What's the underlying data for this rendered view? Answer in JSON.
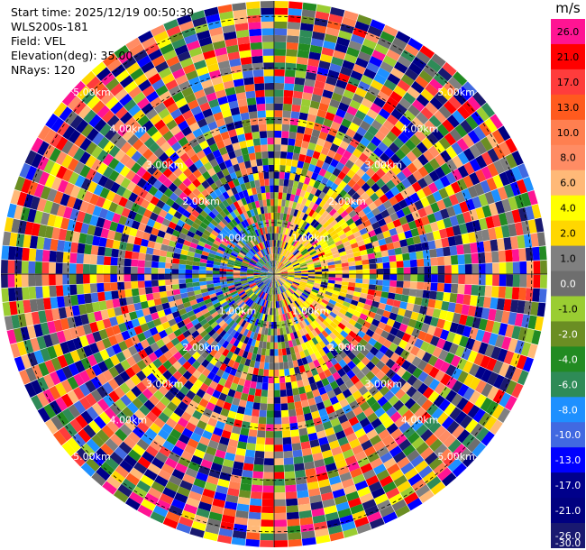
{
  "header": {
    "start_time": "Start time: 2025/12/19 00:50:39",
    "instrument": "WLS200s-181",
    "field": "Field: VEL",
    "elevation": "Elevation(deg): 35.00",
    "nrays": "NRays: 120"
  },
  "chart_data": {
    "type": "ppi",
    "field": "VEL",
    "unit": "m/s",
    "nrays": 120,
    "range_rings_km": [
      1.0,
      2.0,
      3.0,
      4.0,
      5.0
    ],
    "range_ring_labels": [
      "1.00km",
      "2.00km",
      "3.00km",
      "4.00km",
      "5.00km"
    ],
    "max_range_km": 5.3,
    "colorbar": {
      "ticks": [
        "26.0",
        "21.0",
        "17.0",
        "13.0",
        "10.0",
        "8.0",
        "6.0",
        "4.0",
        "2.0",
        "1.0",
        "0.0",
        "-1.0",
        "-2.0",
        "-4.0",
        "-6.0",
        "-8.0",
        "-10.0",
        "-13.0",
        "-17.0",
        "-21.0",
        "-26.0",
        "-30.0"
      ],
      "colors": [
        "#ff1493",
        "#ff0000",
        "#ff3c3c",
        "#ff5a1e",
        "#ff7f50",
        "#ff8c64",
        "#ffb978",
        "#ffff00",
        "#ffd700",
        "#808080",
        "#6e6e6e",
        "#9acd32",
        "#6b8e23",
        "#228b22",
        "#2e8b57",
        "#1e90ff",
        "#4169e1",
        "#0000ff",
        "#00008b",
        "#000080",
        "#191970"
      ]
    }
  }
}
